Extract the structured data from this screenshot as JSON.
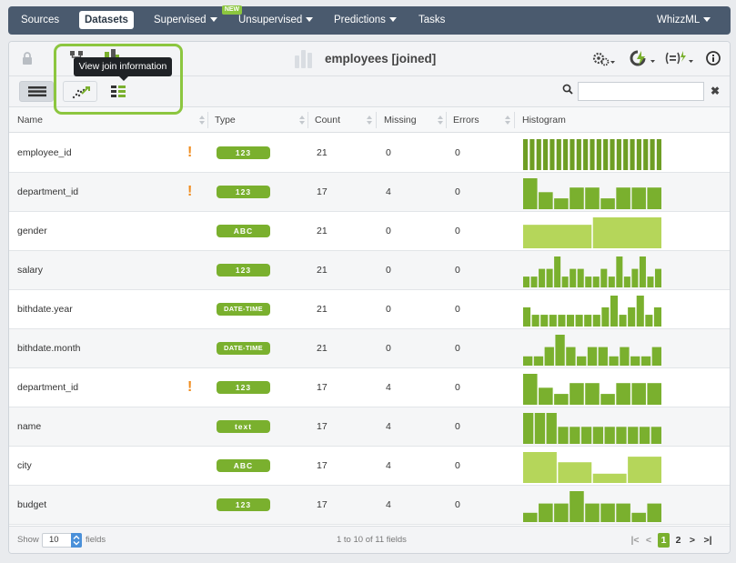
{
  "nav": {
    "items": [
      {
        "label": "Sources",
        "caret": false,
        "active": false
      },
      {
        "label": "Datasets",
        "caret": false,
        "active": true
      },
      {
        "label": "Supervised",
        "caret": true,
        "active": false
      },
      {
        "label": "Unsupervised",
        "caret": true,
        "active": false
      },
      {
        "label": "Predictions",
        "caret": true,
        "active": false
      },
      {
        "label": "Tasks",
        "caret": false,
        "active": false
      }
    ],
    "new_badge": "NEW",
    "user": "WhizzML"
  },
  "dataset": {
    "title": "employees [joined]",
    "tooltip": "View join information"
  },
  "search": {
    "placeholder": "",
    "value": ""
  },
  "table": {
    "headers": {
      "name": "Name",
      "type": "Type",
      "count": "Count",
      "missing": "Missing",
      "errors": "Errors",
      "histogram": "Histogram"
    },
    "rows": [
      {
        "name": "employee_id",
        "warn": "!",
        "type": "123",
        "count": "21",
        "missing": "0",
        "errors": "0",
        "hist": [
          1,
          1,
          1,
          1,
          1,
          1,
          1,
          1,
          1,
          1,
          1,
          1,
          1,
          1,
          1,
          1,
          1,
          1,
          1,
          1,
          1
        ],
        "hist_style": "thin"
      },
      {
        "name": "department_id",
        "warn": "!",
        "type": "123",
        "count": "17",
        "missing": "4",
        "errors": "0",
        "hist": [
          1,
          0.55,
          0.35,
          0.7,
          0.7,
          0.35,
          0.7,
          0.7,
          0.7
        ],
        "hist_style": "solid"
      },
      {
        "name": "gender",
        "warn": "",
        "type": "ABC",
        "count": "21",
        "missing": "0",
        "errors": "0",
        "hist": [
          0.76,
          1
        ],
        "hist_style": "light"
      },
      {
        "name": "salary",
        "warn": "",
        "type": "123",
        "count": "21",
        "missing": "0",
        "errors": "0",
        "hist": [
          0.35,
          0.35,
          0.6,
          0.6,
          1,
          0.35,
          0.6,
          0.6,
          0.35,
          0.35,
          0.6,
          0.35,
          1,
          0.35,
          0.6,
          1,
          0.35,
          0.6
        ],
        "hist_style": "solid"
      },
      {
        "name": "bithdate.year",
        "warn": "",
        "type": "DATE-TIME",
        "count": "21",
        "missing": "0",
        "errors": "0",
        "hist": [
          0.62,
          0.38,
          0.38,
          0.38,
          0.38,
          0.38,
          0.38,
          0.38,
          0.38,
          0.62,
          1,
          0.38,
          0.62,
          1,
          0.38,
          0.62
        ],
        "hist_style": "solid"
      },
      {
        "name": "bithdate.month",
        "warn": "",
        "type": "DATE-TIME",
        "count": "21",
        "missing": "0",
        "errors": "0",
        "hist": [
          0.3,
          0.3,
          0.6,
          1,
          0.6,
          0.3,
          0.6,
          0.6,
          0.3,
          0.6,
          0.3,
          0.3,
          0.6
        ],
        "hist_style": "solid"
      },
      {
        "name": "department_id",
        "warn": "!",
        "type": "123",
        "count": "17",
        "missing": "4",
        "errors": "0",
        "hist": [
          1,
          0.55,
          0.35,
          0.7,
          0.7,
          0.35,
          0.7,
          0.7,
          0.7
        ],
        "hist_style": "solid"
      },
      {
        "name": "name",
        "warn": "",
        "type": "text",
        "count": "17",
        "missing": "4",
        "errors": "0",
        "hist": [
          1,
          1,
          1,
          0.55,
          0.55,
          0.55,
          0.55,
          0.55,
          0.55,
          0.55,
          0.55,
          0.55
        ],
        "hist_style": "solid"
      },
      {
        "name": "city",
        "warn": "",
        "type": "ABC",
        "count": "17",
        "missing": "4",
        "errors": "0",
        "hist": [
          1,
          0.67,
          0.3,
          0.85
        ],
        "hist_style": "light"
      },
      {
        "name": "budget",
        "warn": "",
        "type": "123",
        "count": "17",
        "missing": "4",
        "errors": "0",
        "hist": [
          0.3,
          0.6,
          0.6,
          1,
          0.6,
          0.6,
          0.6,
          0.3,
          0.6
        ],
        "hist_style": "solid"
      }
    ]
  },
  "footer": {
    "show": "Show",
    "per_page": "10",
    "fields": "fields",
    "count": "1 to 10 of 11 fields",
    "first": "|<",
    "prev": "<",
    "page1": "1",
    "page2": "2",
    "next": ">",
    "last": ">|"
  },
  "colors": {
    "accent": "#7ab02e",
    "accent_light": "#b5d65a",
    "nav_bg": "#4a5a6e",
    "warn": "#f08c1e",
    "highlight": "#8cc63f"
  }
}
